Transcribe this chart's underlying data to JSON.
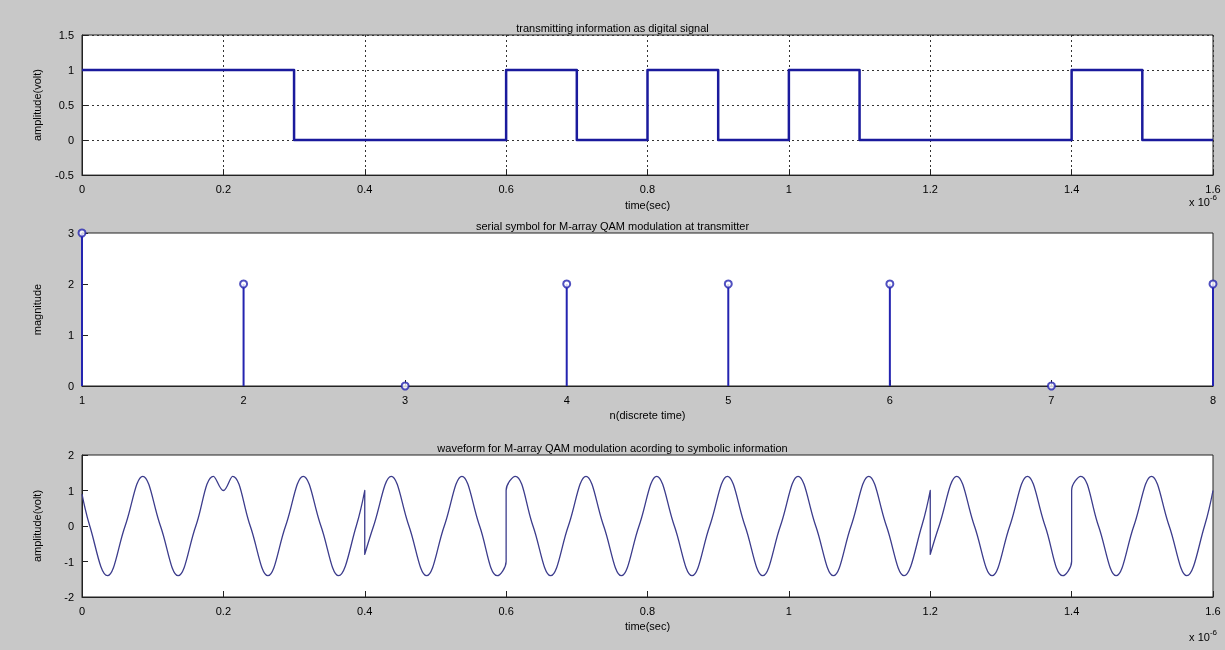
{
  "chart_data": [
    {
      "type": "step",
      "title": "transmitting information as digital signal",
      "xlabel": "time(sec)",
      "ylabel": "amplitude(volt)",
      "color": "#1a1a9c",
      "grid": true,
      "xlim": [
        0,
        1.6
      ],
      "xticks": [
        0,
        0.2,
        0.4,
        0.6,
        0.8,
        1,
        1.2,
        1.4,
        1.6
      ],
      "ylim": [
        -0.5,
        1.5
      ],
      "yticks": [
        -0.5,
        0,
        0.5,
        1,
        1.5
      ],
      "annotations": [
        "x 10$^{-6}$"
      ],
      "x": [
        0,
        0.3,
        0.6,
        0.7,
        0.8,
        0.9,
        1.0,
        1.1,
        1.4,
        1.5,
        1.6
      ],
      "values": [
        1,
        0,
        1,
        0,
        1,
        0,
        1,
        0,
        1,
        0,
        0
      ]
    },
    {
      "type": "lollipop",
      "title": "serial symbol for M-array QAM modulation at transmitter",
      "xlabel": "n(discrete time)",
      "ylabel": "magnitude",
      "color": "#2424b0",
      "marker": "circle",
      "xlim": [
        1,
        8
      ],
      "xticks": [
        1,
        2,
        3,
        4,
        5,
        6,
        7,
        8
      ],
      "ylim": [
        0,
        3
      ],
      "yticks": [
        0,
        1,
        2,
        3
      ],
      "x": [
        1,
        2,
        3,
        4,
        5,
        6,
        7,
        8
      ],
      "values": [
        3,
        2,
        0,
        2,
        2,
        2,
        0,
        2
      ]
    },
    {
      "type": "line",
      "title": "waveform for M-array QAM modulation acording to symbolic information",
      "xlabel": "time(sec)",
      "ylabel": "amplitude(volt)",
      "color": "#3c3c8c",
      "xlim": [
        0,
        1.6
      ],
      "xticks": [
        0,
        0.2,
        0.4,
        0.6,
        0.8,
        1,
        1.2,
        1.4,
        1.6
      ],
      "ylim": [
        -2,
        2
      ],
      "yticks": [
        -2,
        -1,
        0,
        1,
        2
      ],
      "annotations": [
        "x 10$^{-6}$"
      ],
      "x": [
        0,
        0.011,
        0.036,
        0.061,
        0.086,
        0.111,
        0.136,
        0.161,
        0.186,
        0.2,
        0.2,
        0.213,
        0.238,
        0.263,
        0.288,
        0.313,
        0.338,
        0.363,
        0.388,
        0.4,
        0.4,
        0.4125,
        0.4375,
        0.4625,
        0.4875,
        0.5125,
        0.5375,
        0.5625,
        0.5875,
        0.6,
        0.6,
        0.613,
        0.638,
        0.663,
        0.688,
        0.713,
        0.738,
        0.763,
        0.788,
        0.813,
        0.838,
        0.863,
        0.888,
        0.913,
        0.938,
        0.963,
        0.988,
        1.013,
        1.038,
        1.063,
        1.088,
        1.113,
        1.138,
        1.163,
        1.188,
        1.2,
        1.2,
        1.2125,
        1.2375,
        1.2625,
        1.2875,
        1.3125,
        1.3375,
        1.3625,
        1.3875,
        1.4,
        1.4,
        1.413,
        1.438,
        1.463,
        1.488,
        1.513,
        1.538,
        1.563,
        1.588,
        1.6
      ],
      "values": [
        0.9,
        0,
        -1.4,
        0,
        1.4,
        0,
        -1.4,
        0,
        1.4,
        1.0,
        1.0,
        1.4,
        0,
        -1.4,
        0,
        1.4,
        0,
        -1.4,
        0,
        1.0,
        -0.8,
        0,
        1.4,
        0,
        -1.4,
        0,
        1.4,
        0,
        -1.4,
        -1.0,
        1.0,
        1.4,
        0,
        -1.4,
        0,
        1.4,
        0,
        -1.4,
        0,
        1.4,
        0,
        -1.4,
        0,
        1.4,
        0,
        -1.4,
        0,
        1.4,
        0,
        -1.4,
        0,
        1.4,
        0,
        -1.4,
        0,
        1.0,
        -0.8,
        0,
        1.4,
        0,
        -1.4,
        0,
        1.4,
        0,
        -1.4,
        -1.0,
        1.0,
        1.4,
        0,
        -1.4,
        0,
        1.4,
        0,
        -1.4,
        0,
        1.0
      ]
    }
  ]
}
